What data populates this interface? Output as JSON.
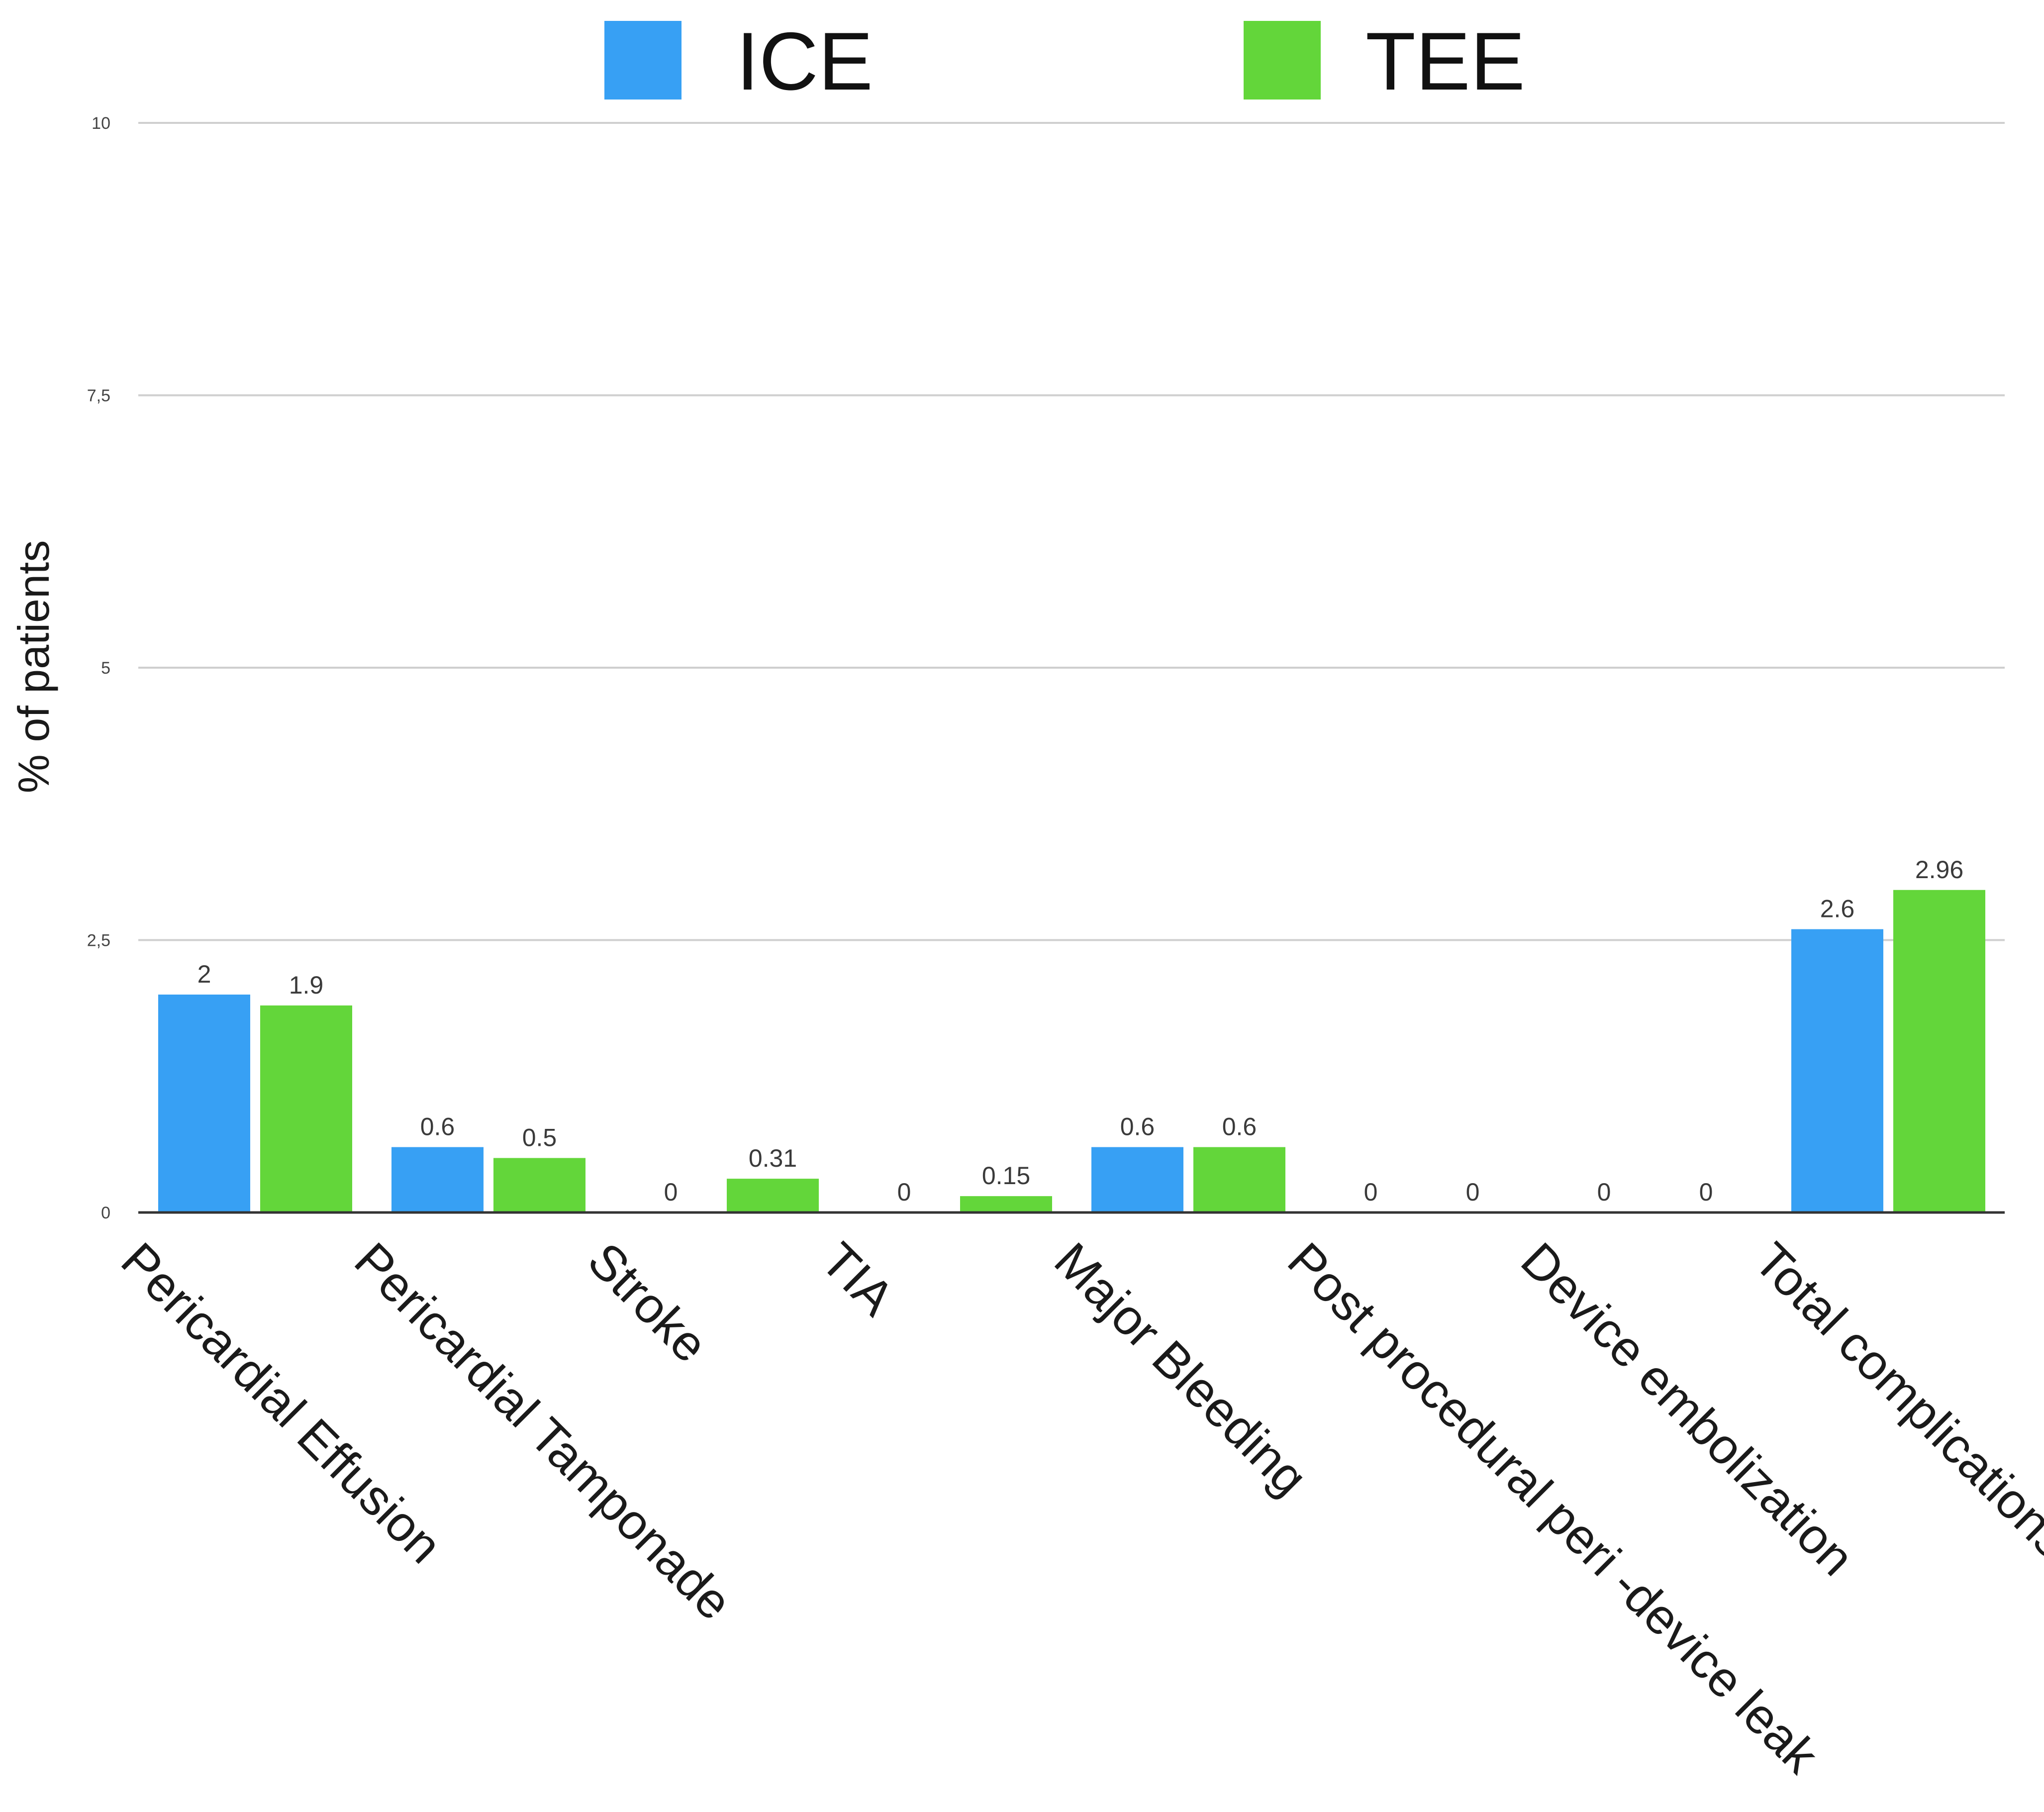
{
  "chart_data": {
    "type": "bar",
    "title": "",
    "xlabel": "",
    "ylabel": "% of patients",
    "ylim": [
      0,
      10
    ],
    "yticks": [
      0,
      2.5,
      5,
      7.5,
      10
    ],
    "ytick_labels": [
      "0",
      "2,5",
      "5",
      "7,5",
      "10"
    ],
    "grid": true,
    "legend_position": "top-center",
    "categories": [
      "Pericardial Effusion",
      "Pericardial Tamponade",
      "Stroke",
      "TIA",
      "Major Bleeding",
      "Post procedural peri -device leak",
      "Device embolization",
      "Total complications"
    ],
    "series": [
      {
        "name": "ICE",
        "color": "#37a0f4",
        "values": [
          2,
          0.6,
          0,
          0,
          0.6,
          0,
          0,
          2.6
        ],
        "labels": [
          "2",
          "0.6",
          "0",
          "0",
          "0.6",
          "0",
          "0",
          "2.6"
        ]
      },
      {
        "name": "TEE",
        "color": "#63d63a",
        "values": [
          1.9,
          0.5,
          0.31,
          0.15,
          0.6,
          0,
          0,
          2.96
        ],
        "labels": [
          "1.9",
          "0.5",
          "0.31",
          "0.15",
          "0.6",
          "0",
          "0",
          "2.96"
        ]
      }
    ]
  }
}
